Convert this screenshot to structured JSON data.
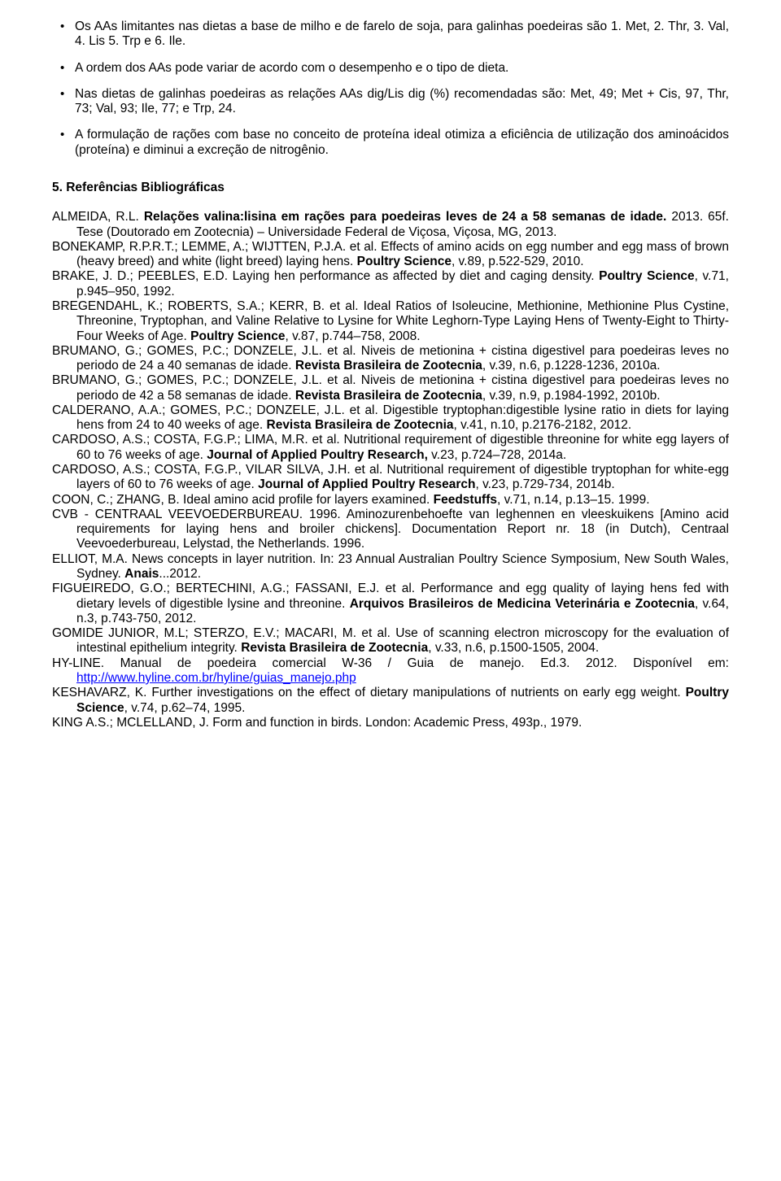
{
  "bullets": [
    "Os AAs limitantes nas dietas a base de milho e de farelo de soja, para galinhas poedeiras são 1. Met, 2. Thr, 3. Val, 4. Lis 5. Trp e 6. Ile.",
    "A ordem dos AAs pode variar de acordo com o desempenho e o tipo de dieta.",
    "Nas dietas de galinhas poedeiras as relações AAs dig/Lis dig (%) recomendadas são: Met, 49; Met + Cis, 97, Thr, 73; Val, 93; Ile, 77; e Trp, 24.",
    "A formulação de rações com base no conceito de proteína ideal otimiza a eficiência de utilização dos aminoácidos (proteína) e diminui a excreção de nitrogênio."
  ],
  "section_heading": "5. Referências Bibliográficas",
  "references": [
    {
      "pre": "ALMEIDA, R.L. ",
      "bold1": "Relações valina:lisina em rações para poedeiras leves de 24 a 58 semanas de idade.",
      "post1": " 2013. 65f. Tese (Doutorado em Zootecnia) – Universidade Federal de Viçosa, Viçosa, MG, 2013."
    },
    {
      "pre": "BONEKAMP, R.P.R.T.; LEMME, A.; WIJTTEN, P.J.A. et al. Effects of amino acids on egg number and egg mass of brown (heavy breed) and white (light breed) laying hens. ",
      "bold1": "Poultry Science",
      "post1": ", v.89, p.522-529, 2010."
    },
    {
      "pre": "BRAKE, J. D.; PEEBLES, E.D. Laying hen performance as affected by diet and caging density. ",
      "bold1": "Poultry Science",
      "post1": ", v.71, p.945–950, 1992."
    },
    {
      "pre": "BREGENDAHL, K.; ROBERTS, S.A.; KERR, B. et al. Ideal Ratios of Isoleucine, Methionine, Methionine Plus Cystine, Threonine, Tryptophan, and Valine Relative to Lysine for White Leghorn-Type Laying Hens of Twenty-Eight to Thirty-Four Weeks of Age. ",
      "bold1": "Poultry Science",
      "post1": ", v.87, p.744–758, 2008."
    },
    {
      "pre": "BRUMANO, G.; GOMES, P.C.; DONZELE, J.L. et al. Niveis de metionina + cistina digestivel para poedeiras leves no periodo de 24 a 40 semanas de idade. ",
      "bold1": "Revista Brasileira de Zootecnia",
      "post1": ", v.39, n.6, p.1228-1236, 2010a."
    },
    {
      "pre": "BRUMANO, G.; GOMES, P.C.; DONZELE, J.L. et al. Niveis de metionina + cistina digestivel para poedeiras leves no periodo de 42 a 58 semanas de idade. ",
      "bold1": "Revista Brasileira de Zootecnia",
      "post1": ", v.39, n.9, p.1984-1992, 2010b."
    },
    {
      "pre": "CALDERANO, A.A.; GOMES, P.C.; DONZELE, J.L. et al. Digestible tryptophan:digestible lysine ratio in diets for laying hens from 24 to 40 weeks of age. ",
      "bold1": "Revista Brasileira de Zootecnia",
      "post1": ", v.41, n.10, p.2176-2182, 2012."
    },
    {
      "pre": "CARDOSO, A.S.; COSTA, F.G.P.; LIMA, M.R. et al. Nutritional requirement of digestible threonine for white egg layers of 60 to 76 weeks of age. ",
      "bold1": "Journal of Applied Poultry Research,",
      "post1": " v.23, p.724–728, 2014a."
    },
    {
      "pre": "CARDOSO, A.S.; COSTA, F.G.P., VILAR SILVA, J.H. et al. Nutritional requirement of digestible tryptophan for white-egg layers of 60 to 76 weeks of age. ",
      "bold1": "Journal of Applied Poultry Research",
      "post1": ", v.23, p.729-734, 2014b."
    },
    {
      "pre": "COON, C.; ZHANG, B. Ideal amino acid profile for layers examined. ",
      "bold1": "Feedstuffs",
      "post1": ", v.71, n.14, p.13–15. 1999."
    },
    {
      "pre": "CVB - CENTRAAL VEEVOEDERBUREAU. 1996. Aminozurenbehoefte van leghennen en vleeskuikens [Amino acid requirements for laying hens and broiler chickens]. Documentation Report nr. 18 (in Dutch), Centraal Veevoederbureau, Lelystad, the Netherlands. 1996.",
      "bold1": "",
      "post1": ""
    },
    {
      "pre": "ELLIOT, M.A. News concepts in layer nutrition. In: 23 Annual Australian Poultry Science Symposium, New South Wales, Sydney. ",
      "bold1": "Anais",
      "post1": "...2012."
    },
    {
      "pre": "FIGUEIREDO, G.O.; BERTECHINI, A.G.; FASSANI, E.J. et al. Performance and egg quality of laying hens fed with dietary levels of digestible lysine and threonine. ",
      "bold1": "Arquivos Brasileiros de Medicina Veterinária e Zootecnia",
      "post1": ", v.64, n.3, p.743-750, 2012."
    },
    {
      "pre": "GOMIDE JUNIOR, M.L; STERZO, E.V.; MACARI, M. et al. Use of scanning electron microscopy for the evaluation of intestinal epithelium integrity. ",
      "bold1": "Revista Brasileira de Zootecnia",
      "post1": ", v.33, n.6, p.1500-1505, 2004."
    },
    {
      "pre": "HY-LINE. Manual de poedeira comercial W-36 / Guia de manejo. Ed.3. 2012. Disponível em: ",
      "bold1": "",
      "post1": "",
      "link": "http://www.hyline.com.br/hyline/guias_manejo.php"
    },
    {
      "pre": "KESHAVARZ, K. Further investigations on the effect of dietary manipulations of nutrients on early egg weight. ",
      "bold1": "Poultry Science",
      "post1": ", v.74, p.62–74, 1995."
    },
    {
      "pre": "KING A.S.; MCLELLAND, J. Form and function in birds. London: Academic Press, 493p., 1979.",
      "bold1": "",
      "post1": ""
    }
  ]
}
